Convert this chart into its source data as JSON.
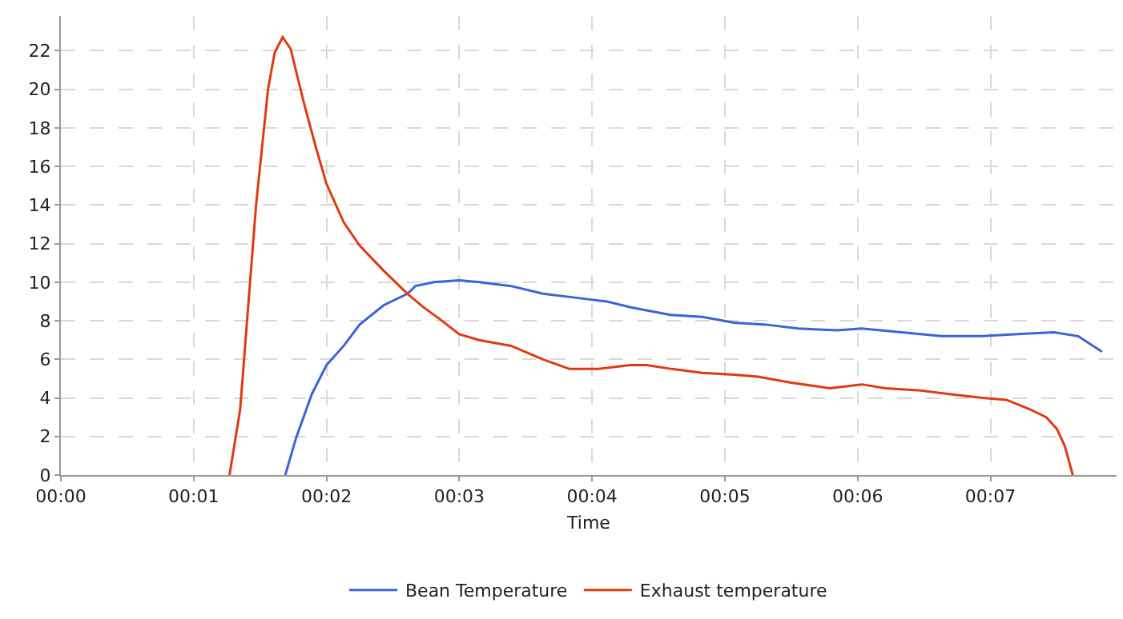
{
  "chart_data": {
    "type": "line",
    "xlabel": "Time",
    "xlim": [
      0,
      7.95
    ],
    "ylim": [
      0,
      23.8
    ],
    "xticks": [
      {
        "value": 0,
        "label": "00:00"
      },
      {
        "value": 1,
        "label": "00:01"
      },
      {
        "value": 2,
        "label": "00:02"
      },
      {
        "value": 3,
        "label": "00:03"
      },
      {
        "value": 4,
        "label": "00:04"
      },
      {
        "value": 5,
        "label": "00:05"
      },
      {
        "value": 6,
        "label": "00:06"
      },
      {
        "value": 7,
        "label": "00:07"
      }
    ],
    "yticks": [
      0,
      2,
      4,
      6,
      8,
      10,
      12,
      14,
      16,
      18,
      20,
      22
    ],
    "grid": true,
    "legend": "bottom",
    "line_style": "solid",
    "series": [
      {
        "name": "Bean Temperature",
        "color": "#3b64d4",
        "x": [
          1.69,
          1.77,
          1.89,
          2.0,
          2.13,
          2.25,
          2.43,
          2.61,
          2.67,
          2.81,
          3.0,
          3.15,
          3.39,
          3.63,
          3.87,
          4.11,
          4.29,
          4.59,
          4.83,
          5.07,
          5.31,
          5.55,
          5.85,
          6.03,
          6.33,
          6.63,
          6.94,
          7.18,
          7.48,
          7.66,
          7.84
        ],
        "values": [
          0,
          1.9,
          4.2,
          5.7,
          6.7,
          7.8,
          8.8,
          9.4,
          9.8,
          10.0,
          10.1,
          10.0,
          9.8,
          9.4,
          9.2,
          9.0,
          8.7,
          8.3,
          8.2,
          7.9,
          7.8,
          7.6,
          7.5,
          7.6,
          7.4,
          7.2,
          7.2,
          7.3,
          7.4,
          7.2,
          6.4
        ]
      },
      {
        "name": "Exhaust temperature",
        "color": "#e03a13",
        "x": [
          1.27,
          1.35,
          1.47,
          1.56,
          1.61,
          1.67,
          1.73,
          1.83,
          1.92,
          2.0,
          2.13,
          2.25,
          2.43,
          2.61,
          2.73,
          2.85,
          3.0,
          3.15,
          3.39,
          3.63,
          3.83,
          4.05,
          4.29,
          4.41,
          4.6,
          4.83,
          5.07,
          5.25,
          5.49,
          5.79,
          6.03,
          6.21,
          6.45,
          6.69,
          6.94,
          7.12,
          7.3,
          7.42,
          7.5,
          7.56,
          7.62
        ],
        "values": [
          0,
          3.4,
          14.0,
          20.0,
          21.9,
          22.7,
          22.1,
          19.3,
          17.0,
          15.1,
          13.1,
          11.9,
          10.6,
          9.4,
          8.7,
          8.1,
          7.3,
          7.0,
          6.7,
          6.0,
          5.5,
          5.5,
          5.7,
          5.7,
          5.5,
          5.3,
          5.2,
          5.1,
          4.8,
          4.5,
          4.7,
          4.5,
          4.4,
          4.2,
          4.0,
          3.9,
          3.4,
          3.0,
          2.4,
          1.5,
          0
        ]
      }
    ]
  }
}
